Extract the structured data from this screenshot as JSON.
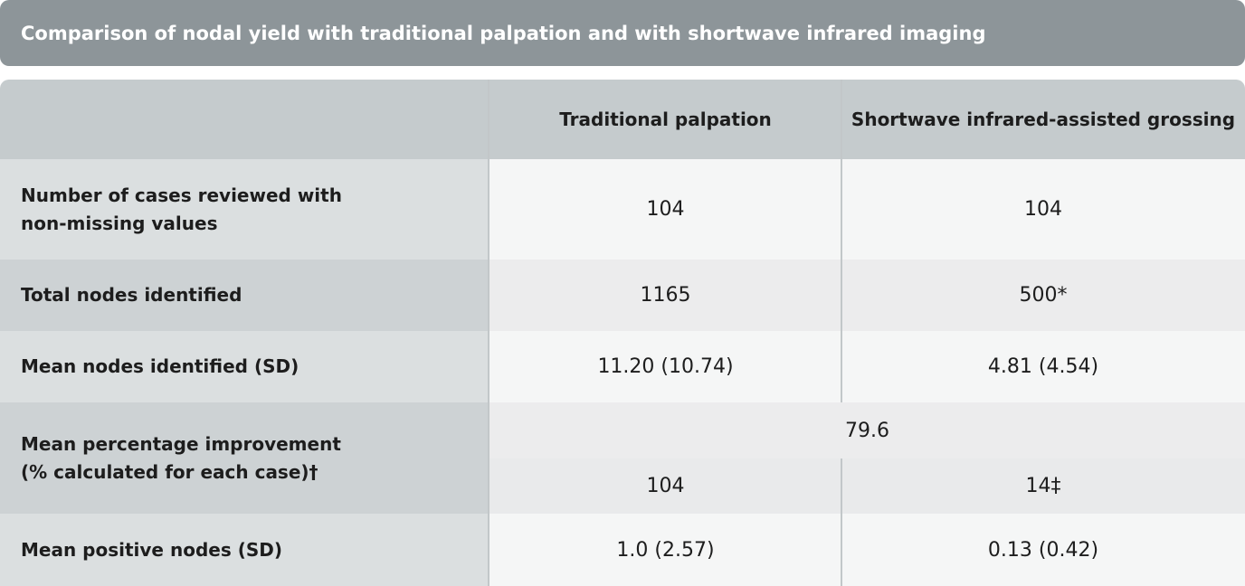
{
  "title": "Comparison of nodal yield with traditional palpation and with shortwave infrared imaging",
  "header": {
    "row_label": "",
    "col1": "Traditional palpation",
    "col2": "Shortwave infrared-assisted grossing"
  },
  "rows": [
    {
      "label_line1": "Number of cases reviewed with",
      "label_line2": "non-missing values",
      "col1": "104",
      "col2": "104"
    },
    {
      "label": "Total nodes identified",
      "col1": "1165",
      "col2": "500*"
    },
    {
      "label": "Mean nodes identified (SD)",
      "col1": "11.20 (10.74)",
      "col2": "4.81 (4.54)"
    },
    {
      "label_line1": "Mean percentage improvement",
      "label_line2": "(% calculated for each case)†",
      "merged": "79.6",
      "col1": "104",
      "col2": "14‡"
    },
    {
      "label": "Mean positive nodes (SD)",
      "col1": "1.0 (2.57)",
      "col2": "0.13 (0.42)"
    }
  ]
}
